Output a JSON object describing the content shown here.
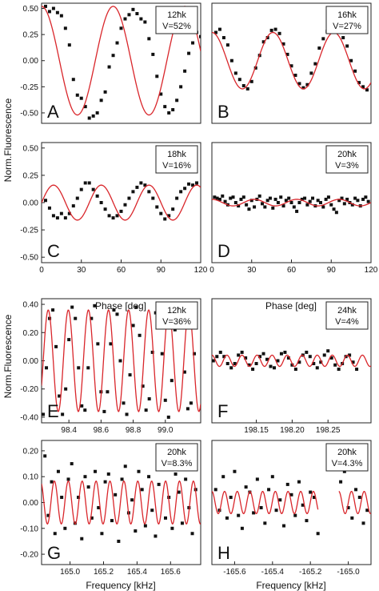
{
  "figure": {
    "ylabel_top": "Norm.Fluorescence",
    "ylabel_bottom": "Norm.Fluorescence",
    "xlabel_phase": "Phase [deg]",
    "xlabel_freq": "Frequency [kHz]",
    "colors": {
      "fit": "#d9262b",
      "data": "#111111",
      "frame": "#222222"
    }
  },
  "chart_data": [
    {
      "id": "A",
      "type": "scatter",
      "letter": "A",
      "legend": [
        "12ħk",
        "V=52%"
      ],
      "xlim": [
        0,
        120
      ],
      "ylim": [
        -0.6,
        0.55
      ],
      "xticks": [],
      "xtick_labels": [],
      "yticks": [
        -0.5,
        -0.25,
        0.0,
        0.25,
        0.5
      ],
      "ytick_labels": [
        "-0.50",
        "-0.25",
        "0.00",
        "0.25",
        "0.50"
      ],
      "series": [
        {
          "kind": "points",
          "x": [
            3,
            6,
            9,
            12,
            15,
            18,
            21,
            24,
            27,
            30,
            33,
            36,
            39,
            42,
            45,
            48,
            51,
            54,
            57,
            60,
            63,
            66,
            69,
            72,
            75,
            78,
            81,
            84,
            87,
            90,
            93,
            96,
            99,
            102,
            105,
            108,
            111,
            114,
            117,
            120
          ],
          "y": [
            0.52,
            0.47,
            0.5,
            0.46,
            0.43,
            0.31,
            0.15,
            -0.18,
            -0.33,
            -0.36,
            -0.44,
            -0.55,
            -0.53,
            -0.5,
            -0.38,
            -0.3,
            -0.06,
            0.05,
            0.17,
            0.31,
            0.4,
            0.44,
            0.49,
            0.45,
            0.4,
            0.37,
            0.21,
            0.06,
            -0.15,
            -0.32,
            -0.44,
            -0.5,
            -0.47,
            -0.38,
            -0.25,
            -0.1,
            0.07,
            0.17,
            0.27,
            0.23
          ]
        },
        {
          "kind": "fit",
          "amplitude": 0.52,
          "period": 54,
          "phase": 0,
          "offset": 0
        }
      ]
    },
    {
      "id": "B",
      "type": "scatter",
      "letter": "B",
      "legend": [
        "16ħk",
        "V=27%"
      ],
      "xlim": [
        0,
        120
      ],
      "ylim": [
        -0.6,
        0.55
      ],
      "xticks": [],
      "xtick_labels": [],
      "yticks": [],
      "ytick_labels": [],
      "series": [
        {
          "kind": "points",
          "x": [
            3,
            6,
            9,
            12,
            15,
            18,
            21,
            24,
            27,
            30,
            33,
            36,
            39,
            42,
            45,
            48,
            51,
            54,
            57,
            60,
            63,
            66,
            69,
            72,
            75,
            78,
            81,
            84,
            87,
            90,
            93,
            96,
            99,
            102,
            105,
            108,
            111,
            114,
            117
          ],
          "y": [
            0.27,
            0.3,
            0.22,
            0.15,
            0.0,
            -0.12,
            -0.18,
            -0.24,
            -0.27,
            -0.2,
            -0.07,
            0.05,
            0.18,
            0.22,
            0.29,
            0.3,
            0.26,
            0.16,
            0.06,
            -0.05,
            -0.14,
            -0.22,
            -0.26,
            -0.23,
            -0.12,
            -0.03,
            0.12,
            0.21,
            0.28,
            0.35,
            0.3,
            0.28,
            0.22,
            0.14,
            0.0,
            -0.1,
            -0.21,
            -0.25,
            -0.28
          ]
        },
        {
          "kind": "fit",
          "amplitude": 0.27,
          "period": 46,
          "phase": 0,
          "offset": 0
        }
      ]
    },
    {
      "id": "C",
      "type": "scatter",
      "letter": "C",
      "legend": [
        "18ħk",
        "V=16%"
      ],
      "xlim": [
        0,
        120
      ],
      "ylim": [
        -0.55,
        0.55
      ],
      "xticks": [
        0,
        30,
        60,
        90,
        120
      ],
      "xtick_labels": [
        "0",
        "30",
        "60",
        "90",
        "120"
      ],
      "yticks": [
        -0.5,
        -0.25,
        0.0,
        0.25,
        0.5
      ],
      "ytick_labels": [
        "-0.50",
        "-0.25",
        "0.00",
        "0.25",
        "0.50"
      ],
      "series": [
        {
          "kind": "points",
          "x": [
            3,
            6,
            9,
            12,
            15,
            18,
            21,
            24,
            27,
            30,
            33,
            36,
            39,
            42,
            45,
            48,
            51,
            54,
            57,
            60,
            63,
            66,
            69,
            72,
            75,
            78,
            81,
            84,
            87,
            90,
            93,
            96,
            99,
            102,
            105,
            108,
            111,
            114,
            117
          ],
          "y": [
            0.02,
            -0.05,
            -0.12,
            -0.14,
            -0.1,
            -0.14,
            -0.1,
            -0.03,
            0.04,
            0.12,
            0.18,
            0.18,
            0.12,
            0.06,
            0.0,
            -0.06,
            -0.12,
            -0.14,
            -0.12,
            -0.08,
            -0.02,
            0.04,
            0.1,
            0.14,
            0.18,
            0.16,
            0.1,
            0.04,
            -0.04,
            -0.1,
            -0.15,
            -0.12,
            -0.06,
            0.04,
            0.1,
            0.13,
            0.17,
            0.16,
            0.18
          ]
        },
        {
          "kind": "fit",
          "amplitude": 0.16,
          "period": 36,
          "phase": 4.71,
          "offset": 0
        }
      ]
    },
    {
      "id": "D",
      "type": "scatter",
      "letter": "D",
      "legend": [
        "20ħk",
        "V=3%"
      ],
      "xlim": [
        0,
        120
      ],
      "ylim": [
        -0.55,
        0.55
      ],
      "xticks": [
        0,
        30,
        60,
        90,
        120
      ],
      "xtick_labels": [
        "0",
        "30",
        "60",
        "90",
        "120"
      ],
      "yticks": [],
      "ytick_labels": [],
      "series": [
        {
          "kind": "points",
          "x": [
            2,
            4,
            6,
            8,
            10,
            12,
            14,
            16,
            18,
            20,
            22,
            24,
            26,
            28,
            30,
            32,
            34,
            36,
            38,
            40,
            42,
            44,
            46,
            48,
            50,
            52,
            54,
            56,
            58,
            60,
            62,
            64,
            66,
            68,
            70,
            72,
            74,
            76,
            78,
            80,
            82,
            84,
            86,
            88,
            90,
            92,
            94,
            96,
            98,
            100,
            102,
            104,
            106,
            108,
            110,
            112,
            114,
            116,
            118
          ],
          "y": [
            0.05,
            0.04,
            0.03,
            0.06,
            0.01,
            -0.02,
            0.04,
            0.05,
            0.0,
            -0.03,
            0.03,
            0.05,
            -0.02,
            -0.06,
            0.02,
            -0.04,
            0.03,
            0.06,
            -0.01,
            -0.04,
            0.02,
            0.04,
            -0.05,
            0.03,
            0.0,
            0.05,
            -0.03,
            0.02,
            0.04,
            0.0,
            -0.04,
            -0.08,
            0.0,
            0.03,
            0.04,
            -0.02,
            0.01,
            0.04,
            -0.03,
            0.02,
            0.0,
            -0.04,
            0.03,
            0.05,
            -0.02,
            -0.06,
            -0.09,
            0.02,
            0.04,
            -0.01,
            0.03,
            0.0,
            -0.02,
            0.04,
            0.02,
            -0.03,
            0.03,
            0.05,
            0.01
          ]
        },
        {
          "kind": "fit",
          "amplitude": 0.03,
          "period": 32,
          "phase": 0,
          "offset": 0
        }
      ]
    },
    {
      "id": "E",
      "type": "scatter",
      "letter": "E",
      "legend": [
        "12ħk",
        "V=36%"
      ],
      "xlim": [
        98.23,
        99.22
      ],
      "ylim": [
        -0.44,
        0.44
      ],
      "xticks": [
        98.4,
        98.6,
        98.8,
        99.0
      ],
      "xtick_labels": [
        "98.4",
        "98.6",
        "98.8",
        "99.0"
      ],
      "yticks": [
        -0.4,
        -0.2,
        0.0,
        0.2,
        0.4
      ],
      "ytick_labels": [
        "-0.40",
        "-0.20",
        "0.00",
        "0.20",
        "0.40"
      ],
      "series": [
        {
          "kind": "points",
          "x": [
            98.24,
            98.26,
            98.28,
            98.3,
            98.32,
            98.34,
            98.36,
            98.38,
            98.4,
            98.42,
            98.44,
            98.46,
            98.48,
            98.5,
            98.52,
            98.54,
            98.56,
            98.58,
            98.6,
            98.62,
            98.64,
            98.66,
            98.68,
            98.7,
            98.72,
            98.74,
            98.76,
            98.78,
            98.8,
            98.82,
            98.84,
            98.86,
            98.88,
            98.9,
            98.92,
            98.94,
            98.96,
            98.98,
            99.0,
            99.02,
            99.04,
            99.06,
            99.08,
            99.1,
            99.12,
            99.14,
            99.16,
            99.18
          ],
          "y": [
            -0.38,
            -0.05,
            0.3,
            0.36,
            0.1,
            -0.25,
            -0.38,
            -0.2,
            0.15,
            0.38,
            0.3,
            -0.05,
            -0.32,
            -0.35,
            -0.05,
            0.3,
            0.39,
            0.12,
            -0.22,
            -0.36,
            -0.22,
            0.12,
            0.36,
            0.33,
            0.0,
            -0.3,
            -0.38,
            -0.1,
            0.25,
            0.38,
            0.18,
            -0.18,
            -0.35,
            -0.27,
            0.06,
            0.34,
            0.35,
            0.05,
            -0.28,
            -0.4,
            -0.14,
            0.22,
            0.36,
            0.25,
            -0.08,
            -0.34,
            -0.3,
            0.05
          ]
        },
        {
          "kind": "fit",
          "amplitude": 0.36,
          "period": 0.125,
          "phase": 4.2,
          "offset": 0
        }
      ]
    },
    {
      "id": "F",
      "type": "scatter",
      "letter": "F",
      "legend": [
        "24ħk",
        "V=4%"
      ],
      "xlim": [
        198.088,
        198.31
      ],
      "ylim": [
        -0.44,
        0.44
      ],
      "xticks": [
        198.15,
        198.2,
        198.25
      ],
      "xtick_labels": [
        "198.15",
        "198.20",
        "198.25"
      ],
      "yticks": [],
      "ytick_labels": [],
      "series": [
        {
          "kind": "points",
          "x": [
            198.09,
            198.095,
            198.1,
            198.105,
            198.11,
            198.115,
            198.12,
            198.125,
            198.13,
            198.135,
            198.14,
            198.145,
            198.15,
            198.155,
            198.16,
            198.165,
            198.17,
            198.175,
            198.18,
            198.185,
            198.19,
            198.195,
            198.2,
            198.205,
            198.21,
            198.215,
            198.22,
            198.225,
            198.23,
            198.235,
            198.24,
            198.245,
            198.25,
            198.255,
            198.26,
            198.265,
            198.27,
            198.275,
            198.28,
            198.285,
            198.29
          ],
          "y": [
            0.0,
            0.03,
            0.06,
            0.03,
            -0.02,
            -0.05,
            -0.02,
            0.04,
            0.06,
            0.02,
            -0.03,
            -0.06,
            -0.02,
            0.03,
            0.05,
            0.01,
            -0.04,
            -0.05,
            0.0,
            0.05,
            0.06,
            0.02,
            -0.03,
            -0.06,
            -0.01,
            0.04,
            0.06,
            0.03,
            -0.02,
            -0.05,
            -0.01,
            0.04,
            0.07,
            0.02,
            -0.03,
            -0.06,
            -0.02,
            0.03,
            0.04,
            -0.01,
            -0.06
          ]
        },
        {
          "kind": "fit",
          "amplitude": 0.04,
          "period": 0.021,
          "phase": 0,
          "offset": 0
        }
      ]
    },
    {
      "id": "G",
      "type": "scatter",
      "letter": "G",
      "legend": [
        "20ħk",
        "V=8.3%"
      ],
      "xlim": [
        164.83,
        165.78
      ],
      "ylim": [
        -0.24,
        0.24
      ],
      "xticks": [
        165.0,
        165.2,
        165.4,
        165.6
      ],
      "xtick_labels": [
        "165.0",
        "165.2",
        "165.4",
        "165.6"
      ],
      "yticks": [
        -0.2,
        -0.1,
        0.0,
        0.1,
        0.2
      ],
      "ytick_labels": [
        "-0.20",
        "-0.10",
        "0.00",
        "0.10",
        "0.20"
      ],
      "series": [
        {
          "kind": "points",
          "x": [
            164.85,
            164.87,
            164.89,
            164.91,
            164.93,
            164.95,
            164.97,
            164.99,
            165.01,
            165.03,
            165.05,
            165.07,
            165.09,
            165.11,
            165.13,
            165.15,
            165.17,
            165.19,
            165.21,
            165.23,
            165.25,
            165.27,
            165.29,
            165.31,
            165.33,
            165.35,
            165.37,
            165.39,
            165.41,
            165.43,
            165.45,
            165.47,
            165.49,
            165.51,
            165.53,
            165.55,
            165.57,
            165.59,
            165.61,
            165.63,
            165.65,
            165.67,
            165.69,
            165.71,
            165.73,
            165.75
          ],
          "y": [
            0.18,
            -0.05,
            0.08,
            -0.12,
            0.12,
            0.02,
            -0.1,
            0.09,
            0.15,
            -0.08,
            0.02,
            -0.14,
            0.1,
            0.06,
            -0.06,
            0.12,
            -0.02,
            -0.12,
            0.08,
            0.11,
            -0.07,
            0.03,
            -0.15,
            0.09,
            0.14,
            -0.04,
            0.01,
            -0.11,
            0.12,
            0.05,
            -0.09,
            0.1,
            -0.03,
            -0.13,
            0.07,
            0.16,
            -0.06,
            0.02,
            -0.1,
            0.11,
            0.04,
            -0.08,
            0.09,
            -0.02,
            -0.12,
            0.05
          ]
        },
        {
          "kind": "fit",
          "amplitude": 0.083,
          "period": 0.083,
          "phase": 0.5,
          "offset": 0
        }
      ]
    },
    {
      "id": "H",
      "type": "scatter",
      "letter": "H",
      "legend": [
        "20ħk",
        "V=4.3%"
      ],
      "xlim": [
        -165.72,
        -164.88
      ],
      "ylim": [
        -0.24,
        0.24
      ],
      "xticks": [
        -165.6,
        -165.4,
        -165.2,
        -165.0
      ],
      "xtick_labels": [
        "-165.6",
        "-165.4",
        "-165.2",
        "-165.0"
      ],
      "yticks": [],
      "ytick_labels": [],
      "series": [
        {
          "kind": "points",
          "x": [
            -165.7,
            -165.68,
            -165.66,
            -165.64,
            -165.62,
            -165.6,
            -165.58,
            -165.56,
            -165.54,
            -165.52,
            -165.5,
            -165.48,
            -165.46,
            -165.44,
            -165.42,
            -165.4,
            -165.38,
            -165.36,
            -165.34,
            -165.32,
            -165.3,
            -165.28,
            -165.26,
            -165.24,
            -165.22,
            -165.2,
            -165.18,
            -165.16,
            -165.04,
            -165.02,
            -165.0,
            -164.98,
            -164.96,
            -164.94,
            -164.92,
            -164.9
          ],
          "y": [
            0.05,
            -0.03,
            0.1,
            -0.06,
            0.02,
            0.12,
            -0.05,
            -0.1,
            0.06,
            0.04,
            -0.04,
            0.09,
            -0.02,
            -0.08,
            0.05,
            0.1,
            -0.03,
            0.01,
            -0.09,
            0.07,
            0.03,
            -0.05,
            0.08,
            -0.01,
            -0.07,
            0.04,
            0.02,
            -0.12,
            0.08,
            0.12,
            -0.02,
            -0.06,
            0.05,
            0.02,
            -0.08,
            -0.03
          ]
        },
        {
          "kind": "fit",
          "amplitude": 0.043,
          "period": 0.067,
          "phase": 0,
          "offset": 0,
          "segments": [
            [
              -165.72,
              -165.16
            ],
            [
              -165.05,
              -164.88
            ]
          ]
        }
      ]
    }
  ]
}
